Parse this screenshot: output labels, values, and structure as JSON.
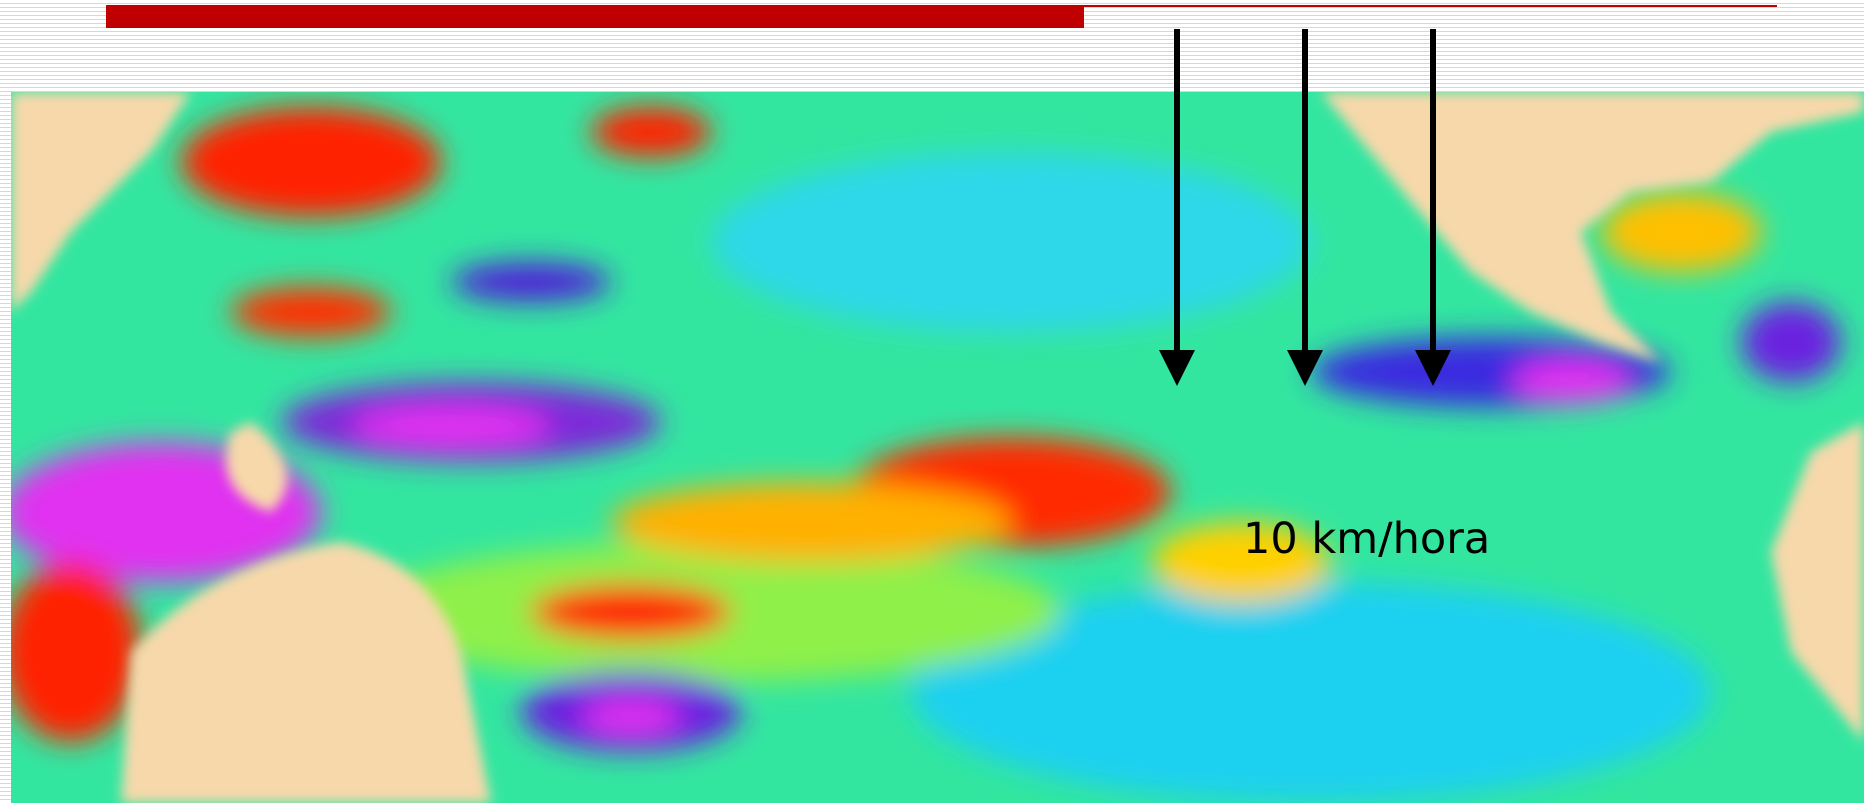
{
  "annotation": "10 km/hora"
}
